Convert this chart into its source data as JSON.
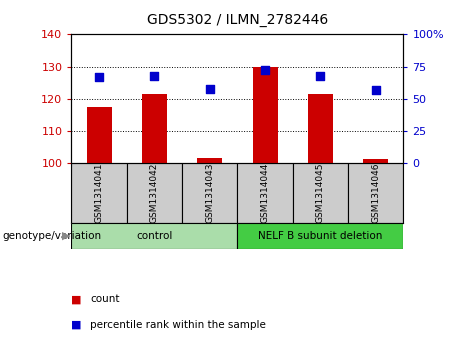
{
  "title": "GDS5302 / ILMN_2782446",
  "samples": [
    "GSM1314041",
    "GSM1314042",
    "GSM1314043",
    "GSM1314044",
    "GSM1314045",
    "GSM1314046"
  ],
  "counts": [
    117.5,
    121.5,
    101.5,
    130.0,
    121.5,
    101.0
  ],
  "percentile_ranks": [
    66.5,
    67.5,
    57.5,
    72.5,
    67.5,
    56.5
  ],
  "ylim_left": [
    100,
    140
  ],
  "ylim_right": [
    0,
    100
  ],
  "yticks_left": [
    100,
    110,
    120,
    130,
    140
  ],
  "yticks_right": [
    0,
    25,
    50,
    75,
    100
  ],
  "ytick_labels_right": [
    "0",
    "25",
    "50",
    "75",
    "100%"
  ],
  "bar_color": "#cc0000",
  "dot_color": "#0000cc",
  "groups": [
    {
      "label": "control",
      "indices": [
        0,
        1,
        2
      ],
      "color": "#aaddaa"
    },
    {
      "label": "NELF B subunit deletion",
      "indices": [
        3,
        4,
        5
      ],
      "color": "#44cc44"
    }
  ],
  "genotype_label": "genotype/variation",
  "legend_count": "count",
  "legend_percentile": "percentile rank within the sample",
  "bar_width": 0.45,
  "dot_size": 28,
  "background_color": "#ffffff",
  "sample_box_color": "#cccccc"
}
